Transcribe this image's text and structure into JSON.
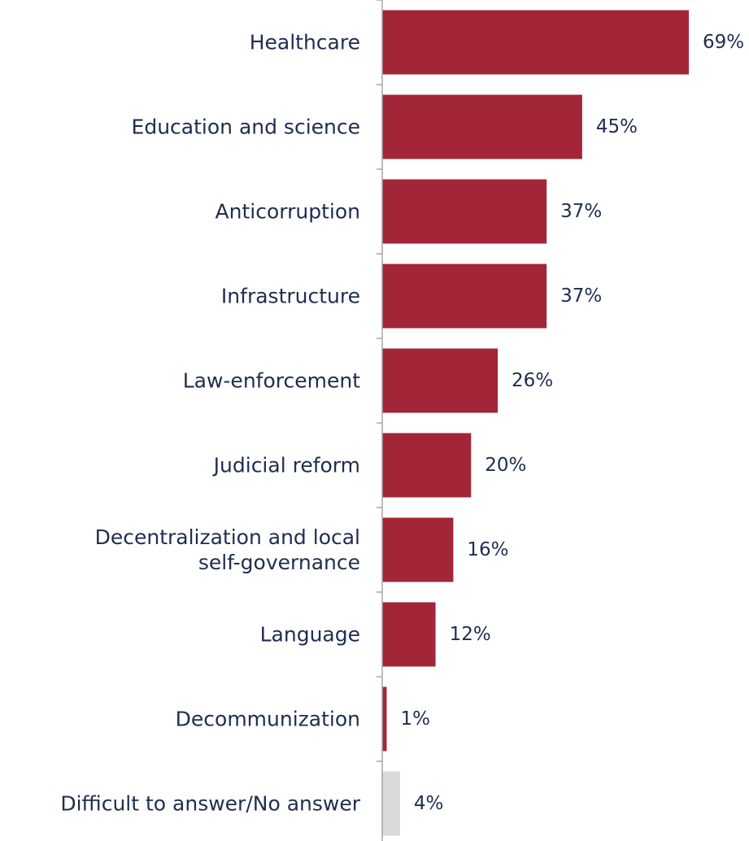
{
  "chart_data": {
    "type": "bar",
    "orientation": "horizontal",
    "categories": [
      "Healthcare",
      "Education and science",
      "Anticorruption",
      "Infrastructure",
      "Law-enforcement",
      "Judicial reform",
      "Decentralization and local self-governance",
      "Language",
      "Decommunization",
      "Difficult to answer/No answer"
    ],
    "category_lines": [
      [
        "Healthcare"
      ],
      [
        "Education and science"
      ],
      [
        "Anticorruption"
      ],
      [
        "Infrastructure"
      ],
      [
        "Law-enforcement"
      ],
      [
        "Judicial reform"
      ],
      [
        "Decentralization and local",
        "self-governance"
      ],
      [
        "Language"
      ],
      [
        "Decommunization"
      ],
      [
        "Difficult to answer/No answer"
      ]
    ],
    "values": [
      69,
      45,
      37,
      37,
      26,
      20,
      16,
      12,
      1,
      4
    ],
    "value_labels": [
      "69%",
      "45%",
      "37%",
      "37%",
      "26%",
      "20%",
      "16%",
      "12%",
      "1%",
      "4%"
    ],
    "bar_colors": [
      "#a22638",
      "#a22638",
      "#a22638",
      "#a22638",
      "#a22638",
      "#a22638",
      "#a22638",
      "#a22638",
      "#a22638",
      "#d9d9d9"
    ],
    "text_color": "#1f2d4f",
    "axis_color": "#a6a6a6",
    "xlim": [
      0,
      69
    ],
    "grid": false,
    "legend": "none",
    "title": "",
    "xlabel": "",
    "ylabel": ""
  }
}
